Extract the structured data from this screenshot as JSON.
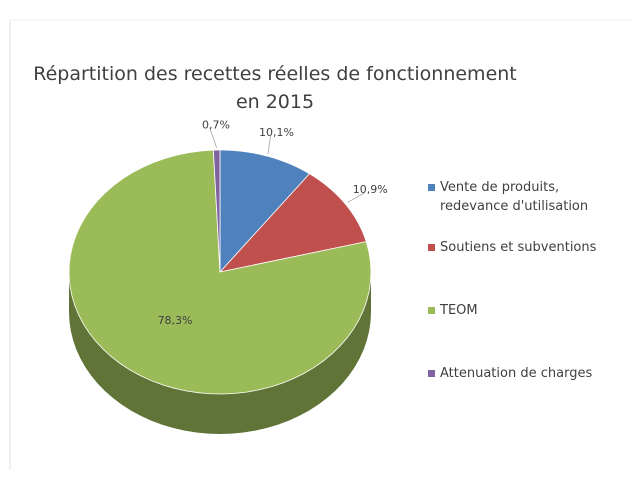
{
  "chart_data": {
    "type": "pie3d",
    "title": "Répartition des recettes réelles de fonctionnement en 2015",
    "categories": [
      "Vente de produits, redevance d'utilisation",
      "Soutiens et  subventions",
      "TEOM",
      "Attenuation de charges"
    ],
    "values": [
      10.1,
      10.9,
      78.3,
      0.7
    ],
    "value_labels": [
      "10,1%",
      "10,9%",
      "78,3%",
      "0,7%"
    ],
    "colors": [
      "#4f81bd",
      "#c0504d",
      "#9bbb59",
      "#8064a2"
    ],
    "legend": "right"
  }
}
